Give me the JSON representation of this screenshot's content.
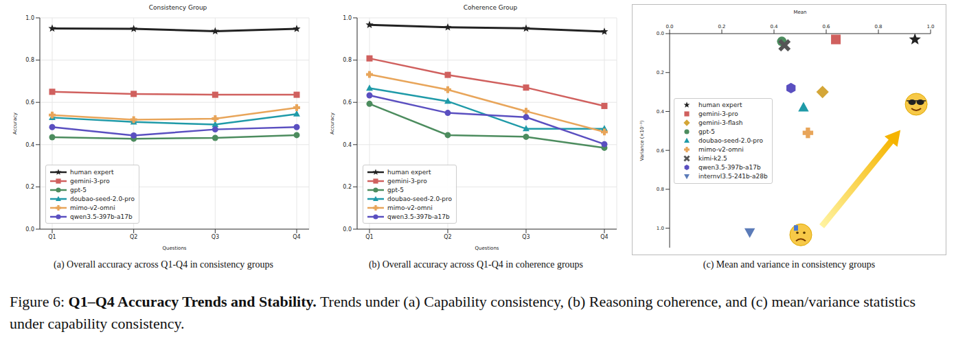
{
  "chart_data": [
    {
      "type": "line",
      "title": "Consistency Group",
      "caption": "(a) Overall accuracy across Q1-Q4 in consistency groups",
      "x_label": "Questions",
      "y_label": "Accuracy",
      "categories": [
        "Q1",
        "Q2",
        "Q3",
        "Q4"
      ],
      "ylim": [
        0,
        1
      ],
      "yticks": [
        {
          "value": 0,
          "label": "0.0"
        },
        0.2,
        0.4,
        0.6,
        0.8,
        {
          "value": 1,
          "label": "1.0"
        }
      ],
      "grid": true,
      "legend": "lower left",
      "series": [
        {
          "name": "human expert",
          "color": "#222222",
          "marker": "star",
          "values": [
            0.95,
            0.948,
            0.937,
            0.948
          ]
        },
        {
          "name": "gemini-3-pro",
          "color": "#d0605e",
          "marker": "square",
          "values": [
            0.65,
            0.64,
            0.636,
            0.636
          ]
        },
        {
          "name": "gpt-5",
          "color": "#4c8c5e",
          "marker": "circle",
          "values": [
            0.435,
            0.428,
            0.432,
            0.445
          ]
        },
        {
          "name": "doubao-seed-2.0-pro",
          "color": "#1f9aa8",
          "marker": "triangle",
          "values": [
            0.528,
            0.507,
            0.495,
            0.545
          ]
        },
        {
          "name": "mimo-v2-omni",
          "color": "#e8a55a",
          "marker": "plus",
          "values": [
            0.54,
            0.518,
            0.523,
            0.575
          ]
        },
        {
          "name": "qwen3.5-397b-a17b",
          "color": "#5a4fc0",
          "marker": "circle",
          "values": [
            0.483,
            0.443,
            0.472,
            0.483
          ]
        }
      ]
    },
    {
      "type": "line",
      "title": "Coherence Group",
      "caption": "(b) Overall accuracy across Q1-Q4 in coherence groups",
      "x_label": "Questions",
      "y_label": "Accuracy",
      "categories": [
        "Q1",
        "Q2",
        "Q3",
        "Q4"
      ],
      "ylim": [
        0,
        1
      ],
      "yticks": [
        {
          "value": 0,
          "label": "0.0"
        },
        0.2,
        0.4,
        0.6,
        0.8,
        {
          "value": 1,
          "label": "1.0"
        }
      ],
      "grid": true,
      "legend": "lower left",
      "series": [
        {
          "name": "human expert",
          "color": "#222222",
          "marker": "star",
          "values": [
            0.967,
            0.955,
            0.95,
            0.935
          ]
        },
        {
          "name": "gemini-3-pro",
          "color": "#d0605e",
          "marker": "square",
          "values": [
            0.808,
            0.73,
            0.67,
            0.583
          ]
        },
        {
          "name": "gpt-5",
          "color": "#4c8c5e",
          "marker": "circle",
          "values": [
            0.593,
            0.445,
            0.437,
            0.385
          ]
        },
        {
          "name": "doubao-seed-2.0-pro",
          "color": "#1f9aa8",
          "marker": "triangle",
          "values": [
            0.667,
            0.605,
            0.475,
            0.475
          ]
        },
        {
          "name": "mimo-v2-omni",
          "color": "#e8a55a",
          "marker": "plus",
          "values": [
            0.732,
            0.66,
            0.558,
            0.46
          ]
        },
        {
          "name": "qwen3.5-397b-a17b",
          "color": "#5a4fc0",
          "marker": "circle",
          "values": [
            0.633,
            0.55,
            0.53,
            0.402
          ]
        }
      ]
    },
    {
      "type": "scatter",
      "caption": "(c) Mean and variance in consistency groups",
      "x_label": "Mean",
      "y_label": "Variance (×10⁻³)",
      "xlim": [
        0,
        1
      ],
      "xticks": [
        {
          "value": 0,
          "label": "0.0"
        },
        0.2,
        0.4,
        0.6,
        0.8,
        {
          "value": 1,
          "label": "1.0"
        }
      ],
      "ylim": [
        0,
        1.1
      ],
      "yticks": [
        {
          "value": 0,
          "label": "0.0"
        },
        0.2,
        0.4,
        0.6,
        0.8,
        {
          "value": 1,
          "label": "1.0"
        }
      ],
      "legend": "center left",
      "series": [
        {
          "name": "human expert",
          "color": "#222222",
          "marker": "star",
          "x": [
            0.94
          ],
          "y": [
            0.03
          ]
        },
        {
          "name": "gemini-3-pro",
          "color": "#d0605e",
          "marker": "square",
          "x": [
            0.637
          ],
          "y": [
            0.03
          ]
        },
        {
          "name": "gemini-3-flash",
          "color": "#d4a637",
          "marker": "diamond",
          "x": [
            0.586
          ],
          "y": [
            0.3
          ]
        },
        {
          "name": "gpt-5",
          "color": "#4c8c5e",
          "marker": "circle",
          "x": [
            0.43
          ],
          "y": [
            0.04
          ]
        },
        {
          "name": "doubao-seed-2.0-pro",
          "color": "#1f9aa8",
          "marker": "triangle",
          "x": [
            0.513
          ],
          "y": [
            0.38
          ]
        },
        {
          "name": "mimo-v2-omni",
          "color": "#e8a55a",
          "marker": "plus",
          "x": [
            0.53
          ],
          "y": [
            0.51
          ]
        },
        {
          "name": "kimi-k2.5",
          "color": "#555555",
          "marker": "x",
          "x": [
            0.44
          ],
          "y": [
            0.06
          ]
        },
        {
          "name": "qwen3.5-397b-a17b",
          "color": "#5a4fc0",
          "marker": "hexagon",
          "x": [
            0.465
          ],
          "y": [
            0.28
          ]
        },
        {
          "name": "internvl3.5-241b-a28b",
          "color": "#5b7bb8",
          "marker": "triangle_down",
          "x": [
            0.307
          ],
          "y": [
            1.02
          ]
        }
      ]
    }
  ],
  "figure_caption": {
    "label": "Figure 6:",
    "title": "Q1–Q4 Accuracy Trends and Stability.",
    "text": "Trends under (a) Capability consistency, (b) Reasoning coherence, and (c) mean/variance statistics under capability consistency."
  }
}
